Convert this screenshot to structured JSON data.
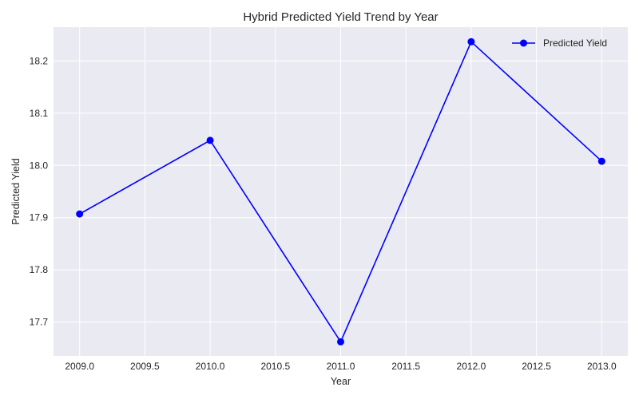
{
  "chart_data": {
    "type": "line",
    "title": "Hybrid Predicted Yield Trend by Year",
    "xlabel": "Year",
    "ylabel": "Predicted Yield",
    "xlim": [
      2008.8,
      2013.2
    ],
    "ylim": [
      17.635,
      18.265
    ],
    "xticks": [
      2009.0,
      2009.5,
      2010.0,
      2010.5,
      2011.0,
      2011.5,
      2012.0,
      2012.5,
      2013.0
    ],
    "xtick_labels": [
      "2009.0",
      "2009.5",
      "2010.0",
      "2010.5",
      "2011.0",
      "2011.5",
      "2012.0",
      "2012.5",
      "2013.0"
    ],
    "yticks": [
      17.7,
      17.8,
      17.9,
      18.0,
      18.1,
      18.2
    ],
    "ytick_labels": [
      "17.7",
      "17.8",
      "17.9",
      "18.0",
      "18.1",
      "18.2"
    ],
    "grid": true,
    "legend_position": "top-right",
    "series": [
      {
        "name": "Predicted Yield",
        "color": "#0000ff",
        "marker": "circle",
        "x": [
          2009,
          2010,
          2011,
          2012,
          2013
        ],
        "y": [
          17.907,
          18.048,
          17.662,
          18.237,
          18.008
        ]
      }
    ],
    "background_color": "#eaeaf2",
    "grid_color": "#ffffff"
  }
}
